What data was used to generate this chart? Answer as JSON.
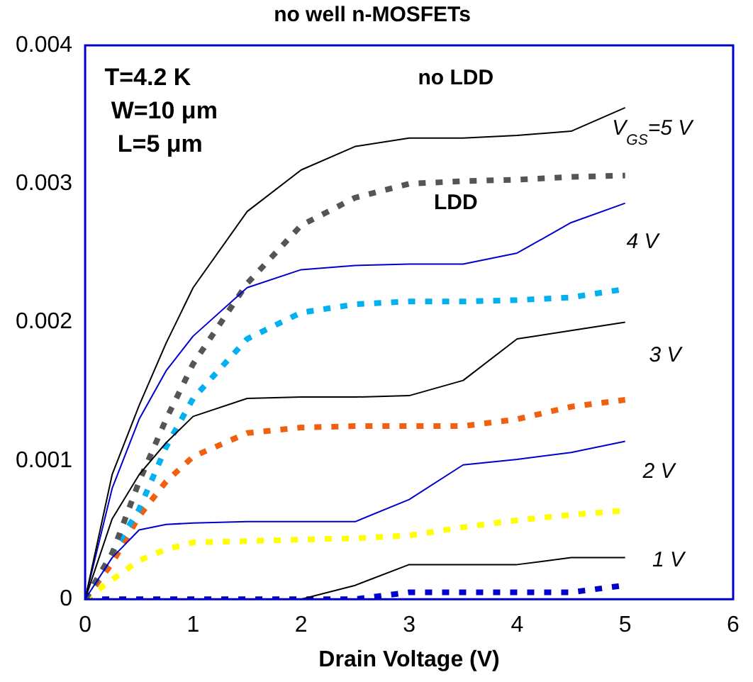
{
  "chart_data": {
    "type": "line",
    "title": "no well n-MOSFETs",
    "xlabel": "Drain Voltage (V)",
    "x": [
      0,
      0.25,
      0.5,
      0.75,
      1,
      1.5,
      2,
      2.5,
      3,
      3.5,
      4,
      4.5,
      5
    ],
    "xlim": [
      0,
      6
    ],
    "xticks": [
      0,
      1,
      2,
      3,
      4,
      5,
      6
    ],
    "ylim": [
      0,
      0.004
    ],
    "yticks": [
      0,
      0.001,
      0.002,
      0.003,
      0.004
    ],
    "grid": false,
    "legend": false,
    "marker": "none",
    "series": [
      {
        "color": "#000000",
        "line_style": "solid",
        "values": [
          0,
          0.0009,
          0.0014,
          0.00185,
          0.00225,
          0.0028,
          0.0031,
          0.00327,
          0.00333,
          0.00333,
          0.00335,
          0.00338,
          0.00355
        ]
      },
      {
        "color": "#555555",
        "line_style": "dotted",
        "values": [
          0,
          0.00033,
          0.00085,
          0.0013,
          0.0017,
          0.00228,
          0.0027,
          0.0029,
          0.003,
          0.00302,
          0.00303,
          0.00305,
          0.00306
        ]
      },
      {
        "color": "#0000cc",
        "line_style": "solid",
        "values": [
          0,
          0.0008,
          0.0013,
          0.00165,
          0.0019,
          0.00225,
          0.00238,
          0.00241,
          0.00242,
          0.00242,
          0.0025,
          0.00272,
          0.00286
        ]
      },
      {
        "color": "#00b0f0",
        "line_style": "dotted",
        "values": [
          0,
          0.00033,
          0.00065,
          0.0011,
          0.00145,
          0.00188,
          0.00207,
          0.00213,
          0.00215,
          0.00215,
          0.00216,
          0.00218,
          0.00224
        ]
      },
      {
        "color": "#000000",
        "line_style": "solid",
        "values": [
          0,
          0.00058,
          0.0009,
          0.00113,
          0.00132,
          0.00145,
          0.00146,
          0.00146,
          0.00147,
          0.00158,
          0.00188,
          0.00194,
          0.002
        ]
      },
      {
        "color": "#f06010",
        "line_style": "dotted",
        "values": [
          0,
          0.00026,
          0.0006,
          0.00085,
          0.00103,
          0.0012,
          0.00124,
          0.00125,
          0.00125,
          0.00125,
          0.0013,
          0.00139,
          0.00144
        ]
      },
      {
        "color": "#0000cc",
        "line_style": "solid",
        "values": [
          0,
          0.0003,
          0.0005,
          0.00054,
          0.00055,
          0.00056,
          0.00056,
          0.00056,
          0.00072,
          0.00097,
          0.00101,
          0.00106,
          0.00114
        ]
      },
      {
        "color": "#ffff00",
        "line_style": "dotted",
        "values": [
          0,
          0.00014,
          0.00028,
          0.00036,
          0.00041,
          0.00042,
          0.00043,
          0.00044,
          0.00046,
          0.00052,
          0.00057,
          0.00061,
          0.00064
        ]
      },
      {
        "color": "#000000",
        "line_style": "solid",
        "values": [
          null,
          null,
          null,
          null,
          null,
          null,
          0,
          0.0001,
          0.00025,
          0.00025,
          0.00025,
          0.0003,
          0.0003
        ]
      },
      {
        "color": "#0000cc",
        "line_style": "dotted",
        "values": [
          0,
          0,
          0,
          0,
          0,
          0,
          0,
          0,
          5e-05,
          5e-05,
          5e-05,
          5e-05,
          0.0001
        ]
      }
    ],
    "annotations": [
      "T=4.2 K",
      "W=10 μm",
      "L=5 μm",
      "no LDD",
      "LDD",
      "V$_{GS}$=5 V",
      "4 V",
      "3 V",
      "2 V",
      "1 V"
    ]
  }
}
